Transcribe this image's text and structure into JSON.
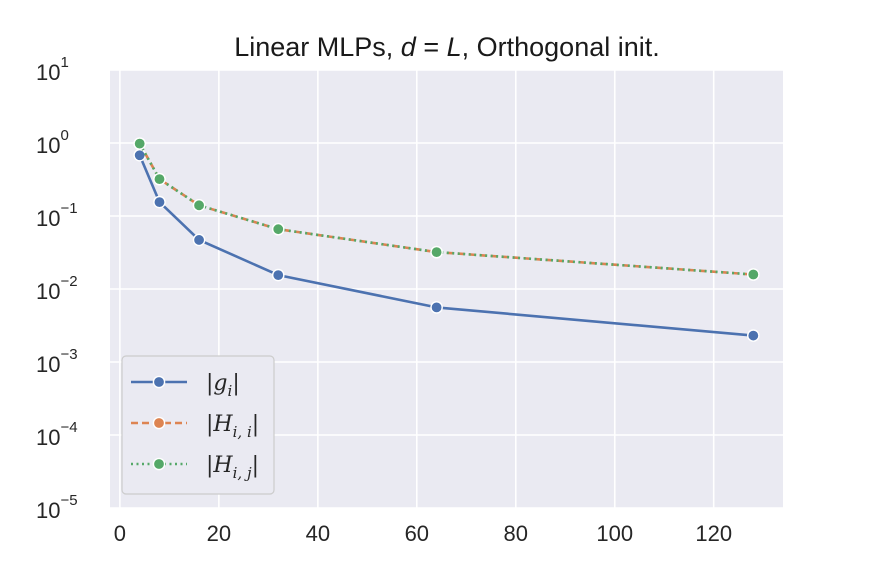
{
  "chart_data": {
    "type": "line",
    "title": {
      "prefix": "Linear MLPs, ",
      "math_lhs": "d",
      "math_eq": " = ",
      "math_rhs": "L",
      "suffix": ", Orthogonal init."
    },
    "xlabel": "",
    "ylabel": "",
    "yscale": "log",
    "xlim": [
      -2,
      134
    ],
    "ylim_exponent": [
      -5,
      1
    ],
    "x_ticks": [
      0,
      20,
      40,
      60,
      80,
      100,
      120
    ],
    "y_ticks": [
      {
        "base": "10",
        "exp": "1",
        "value": 10
      },
      {
        "base": "10",
        "exp": "0",
        "value": 1
      },
      {
        "base": "10",
        "exp": "−1",
        "value": 0.1
      },
      {
        "base": "10",
        "exp": "−2",
        "value": 0.01
      },
      {
        "base": "10",
        "exp": "−3",
        "value": 0.001
      },
      {
        "base": "10",
        "exp": "−4",
        "value": 0.0001
      },
      {
        "base": "10",
        "exp": "−5",
        "value": 1e-05
      }
    ],
    "grid": true,
    "legend_position": "lower-left",
    "series": [
      {
        "name": "|g_i|",
        "legend_label": {
          "open": "|",
          "sym": "g",
          "sub": "i",
          "close": "|"
        },
        "color": "#4c72b0",
        "dash": "solid",
        "x": [
          4,
          8,
          16,
          32,
          64,
          128
        ],
        "y": [
          0.68,
          0.155,
          0.047,
          0.0155,
          0.0056,
          0.0023
        ]
      },
      {
        "name": "|H_{i,i}|",
        "legend_label": {
          "open": "|",
          "sym": "H",
          "sub": "i, i",
          "close": "|"
        },
        "color": "#dd8452",
        "dash": "dashed",
        "x": [
          4,
          8,
          16,
          32,
          64,
          128
        ],
        "y": [
          0.98,
          0.32,
          0.14,
          0.066,
          0.032,
          0.0158
        ]
      },
      {
        "name": "|H_{i,j}|",
        "legend_label": {
          "open": "|",
          "sym": "H",
          "sub": "i, j",
          "close": "|"
        },
        "color": "#55a868",
        "dash": "dotted",
        "x": [
          4,
          8,
          16,
          32,
          64,
          128
        ],
        "y": [
          0.98,
          0.32,
          0.14,
          0.066,
          0.032,
          0.0158
        ]
      }
    ]
  },
  "colors": {
    "plot_background": "#eaeaf2",
    "grid": "#ffffff",
    "legend_background": "#eaeaf2",
    "legend_border": "#cccccc"
  }
}
